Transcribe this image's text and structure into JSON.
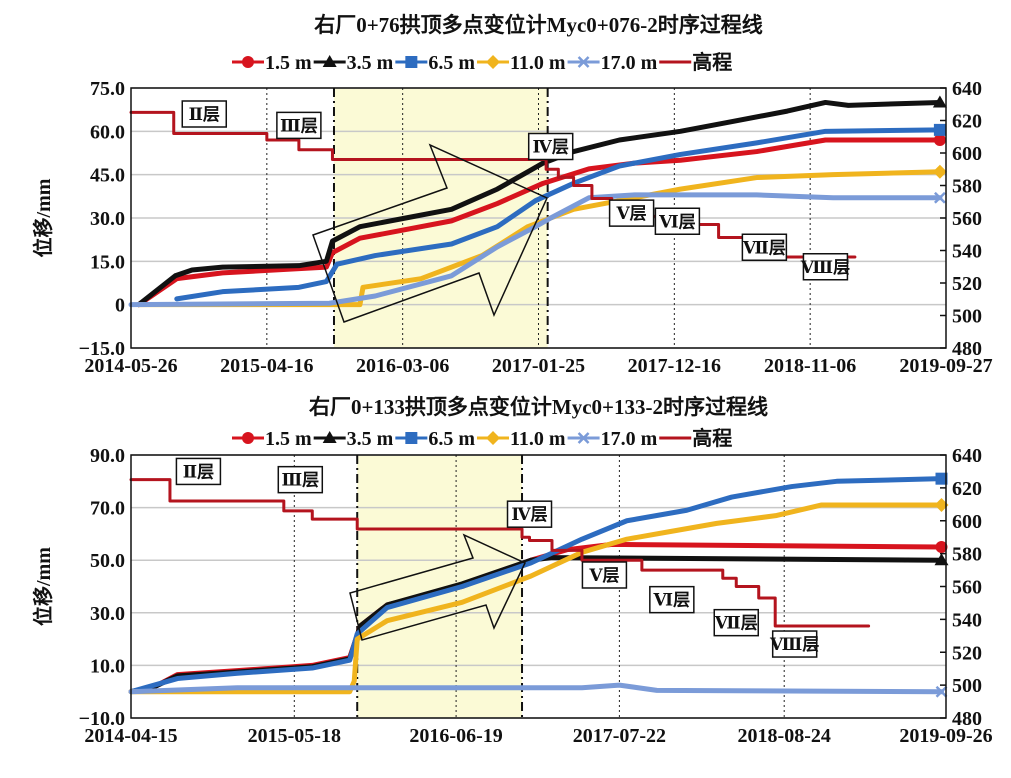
{
  "chart_data": [
    {
      "type": "line",
      "title": "右厂0+76拱顶多点变位计Myc0+076-2时序过程线",
      "ylabel": "位移/mm",
      "ylim": [
        -15,
        75
      ],
      "yticks": [
        "75.0",
        "60.0",
        "45.0",
        "30.0",
        "15.0",
        "0",
        "−15.0"
      ],
      "ytick_values": [
        75,
        60,
        45,
        30,
        15,
        0,
        -15
      ],
      "y2lim": [
        480,
        640
      ],
      "y2ticks": [
        640,
        620,
        600,
        580,
        560,
        540,
        520,
        500,
        480
      ],
      "xlim": [
        2014.4,
        2019.74
      ],
      "xticks": [
        "2014-05-26",
        "2015-04-16",
        "2016-03-06",
        "2017-01-25",
        "2017-12-16",
        "2018-11-06",
        "2019-09-27"
      ],
      "xtick_values": [
        2014.4,
        2015.29,
        2016.18,
        2017.07,
        2017.96,
        2018.85,
        2019.74
      ],
      "highlight_band": [
        2015.73,
        2017.13
      ],
      "grid": true,
      "legend_position": "top-center",
      "series": [
        {
          "name": "1.5 m",
          "color": "#d7141e",
          "marker": "circle",
          "axis": "left",
          "x": [
            2014.45,
            2014.7,
            2015.0,
            2015.68,
            2015.72,
            2015.9,
            2016.2,
            2016.5,
            2016.8,
            2017.1,
            2017.4,
            2017.7,
            2018.0,
            2018.5,
            2018.95,
            2019.7
          ],
          "y": [
            0,
            9,
            11,
            13,
            18,
            23,
            26,
            29,
            35,
            42,
            47,
            49,
            50,
            53,
            57,
            57
          ]
        },
        {
          "name": "3.5 m",
          "color": "#111111",
          "marker": "triangle",
          "axis": "left",
          "x": [
            2014.45,
            2014.69,
            2014.8,
            2015.0,
            2015.5,
            2015.68,
            2015.72,
            2015.9,
            2016.2,
            2016.5,
            2016.8,
            2017.0,
            2017.1,
            2017.3,
            2017.6,
            2018.0,
            2018.3,
            2018.7,
            2018.95,
            2019.1,
            2019.7
          ],
          "y": [
            0,
            10,
            12,
            13,
            13.5,
            15,
            22,
            27,
            30,
            33,
            40,
            46,
            49,
            53,
            57,
            60,
            63,
            67,
            70,
            69,
            70
          ]
        },
        {
          "name": "6.5 m",
          "color": "#2d6cc0",
          "marker": "square",
          "axis": "left",
          "x": [
            2014.7,
            2015.0,
            2015.5,
            2015.68,
            2015.75,
            2016.0,
            2016.5,
            2016.8,
            2017.05,
            2017.3,
            2017.6,
            2018.0,
            2018.5,
            2018.95,
            2019.7
          ],
          "y": [
            2,
            4.5,
            6,
            8,
            14,
            17,
            21,
            27,
            36,
            42,
            48,
            52,
            56,
            60,
            60.5
          ]
        },
        {
          "name": "11.0 m",
          "color": "#f0b41e",
          "marker": "diamond",
          "axis": "left",
          "x": [
            2014.45,
            2015.9,
            2015.92,
            2016.3,
            2016.7,
            2017.0,
            2017.3,
            2017.6,
            2018.0,
            2018.5,
            2019.0,
            2019.7
          ],
          "y": [
            0,
            0,
            6,
            9,
            17,
            27,
            33,
            36,
            40,
            44,
            45,
            46
          ]
        },
        {
          "name": "17.0 m",
          "color": "#7b9bd8",
          "marker": "x",
          "axis": "left",
          "x": [
            2014.4,
            2015.7,
            2016.0,
            2016.5,
            2016.8,
            2017.05,
            2017.15,
            2017.4,
            2017.7,
            2018.5,
            2019.0,
            2019.7
          ],
          "y": [
            0,
            0.5,
            3,
            10,
            20,
            27,
            30,
            37,
            38,
            38,
            37,
            37
          ]
        },
        {
          "name": "高程",
          "color": "#b4141e",
          "marker": "none",
          "axis": "right",
          "step": true,
          "x": [
            2014.4,
            2014.68,
            2015.29,
            2015.5,
            2015.72,
            2017.12,
            2017.2,
            2017.3,
            2017.42,
            2017.55,
            2017.75,
            2018.1,
            2018.25,
            2018.42,
            2018.55,
            2019.13
          ],
          "y": [
            625,
            612,
            608,
            602,
            596,
            590,
            585,
            580,
            572,
            566,
            561,
            556,
            548,
            540,
            536,
            536
          ]
        }
      ],
      "annotations": [
        {
          "text": "Ⅱ层",
          "x": 2014.88,
          "y": 624
        },
        {
          "text": "Ⅲ层",
          "x": 2015.5,
          "y": 617
        },
        {
          "text": "Ⅳ层",
          "x": 2017.15,
          "y": 604
        },
        {
          "text": "Ⅴ层",
          "x": 2017.68,
          "y": 563
        },
        {
          "text": "Ⅵ层",
          "x": 2017.98,
          "y": 558
        },
        {
          "text": "Ⅶ层",
          "x": 2018.55,
          "y": 542
        },
        {
          "text": "Ⅷ层",
          "x": 2018.95,
          "y": 530
        }
      ]
    },
    {
      "type": "line",
      "title": "右厂0+133拱顶多点变位计Myc0+133-2时序过程线",
      "ylabel": "位移/mm",
      "ylim": [
        -10,
        90
      ],
      "yticks": [
        "90.0",
        "70.0",
        "50.0",
        "30.0",
        "10.0",
        "−10.0"
      ],
      "ytick_values": [
        90,
        70,
        50,
        30,
        10,
        -10
      ],
      "y2lim": [
        480,
        640
      ],
      "y2ticks": [
        640,
        620,
        600,
        580,
        560,
        540,
        520,
        500,
        480
      ],
      "xlim": [
        2014.29,
        2019.73
      ],
      "xticks": [
        "2014-04-15",
        "2015-05-18",
        "2016-06-19",
        "2017-07-22",
        "2018-08-24",
        "2019-09-26"
      ],
      "xtick_values": [
        2014.29,
        2015.38,
        2016.46,
        2017.55,
        2018.65,
        2019.73
      ],
      "highlight_band": [
        2015.8,
        2016.9
      ],
      "grid": true,
      "legend_position": "top-center",
      "series": [
        {
          "name": "1.5 m",
          "color": "#d7141e",
          "marker": "circle",
          "axis": "left",
          "x": [
            2014.29,
            2014.45,
            2014.6,
            2015.0,
            2015.5,
            2015.75,
            2015.82,
            2016.0,
            2016.5,
            2016.96,
            2017.2,
            2017.5,
            2019.7
          ],
          "y": [
            0,
            2,
            6.5,
            8,
            10,
            13,
            25,
            33,
            40,
            50,
            54,
            56,
            55
          ]
        },
        {
          "name": "3.5 m",
          "color": "#111111",
          "marker": "triangle",
          "axis": "left",
          "x": [
            2014.29,
            2014.45,
            2014.6,
            2015.0,
            2015.5,
            2015.75,
            2015.82,
            2016.0,
            2016.5,
            2016.96,
            2017.1,
            2019.7
          ],
          "y": [
            0,
            2,
            6,
            7.5,
            9.5,
            12.5,
            25,
            33,
            41,
            50,
            51,
            50
          ]
        },
        {
          "name": "6.5 m",
          "color": "#2d6cc0",
          "marker": "square",
          "axis": "left",
          "x": [
            2014.29,
            2014.6,
            2015.0,
            2015.5,
            2015.75,
            2015.8,
            2016.0,
            2016.5,
            2016.96,
            2017.3,
            2017.6,
            2018.0,
            2018.3,
            2018.7,
            2019.0,
            2019.7
          ],
          "y": [
            0,
            5,
            7,
            9,
            12,
            22,
            32,
            40,
            49,
            58,
            65,
            69,
            74,
            78,
            80,
            81
          ]
        },
        {
          "name": "11.0 m",
          "color": "#f0b41e",
          "marker": "diamond",
          "axis": "left",
          "x": [
            2014.29,
            2015.75,
            2015.78,
            2015.8,
            2016.0,
            2016.5,
            2016.96,
            2017.3,
            2017.6,
            2017.9,
            2018.2,
            2018.6,
            2018.9,
            2019.7
          ],
          "y": [
            0,
            0,
            4,
            20,
            27,
            34,
            44,
            53,
            58,
            61,
            64,
            67,
            71,
            71
          ]
        },
        {
          "name": "17.0 m",
          "color": "#7b9bd8",
          "marker": "x",
          "axis": "left",
          "x": [
            2014.29,
            2015.0,
            2016.0,
            2017.3,
            2017.55,
            2017.8,
            2018.5,
            2019.7
          ],
          "y": [
            0,
            1.5,
            1.5,
            1.5,
            2.5,
            0.5,
            0.3,
            0
          ]
        },
        {
          "name": "高程",
          "color": "#b4141e",
          "marker": "none",
          "axis": "right",
          "step": true,
          "x": [
            2014.29,
            2014.55,
            2015.31,
            2015.5,
            2015.8,
            2016.9,
            2016.95,
            2017.1,
            2017.3,
            2017.55,
            2017.7,
            2018.24,
            2018.33,
            2018.48,
            2018.59,
            2019.2
          ],
          "y": [
            625,
            612,
            606,
            601,
            595,
            590,
            588,
            582,
            576,
            576,
            570,
            565,
            560,
            553,
            536,
            536
          ]
        }
      ],
      "annotations": [
        {
          "text": "Ⅱ层",
          "x": 2014.74,
          "y": 630
        },
        {
          "text": "Ⅲ层",
          "x": 2015.42,
          "y": 625
        },
        {
          "text": "Ⅳ层",
          "x": 2016.95,
          "y": 604
        },
        {
          "text": "Ⅴ层",
          "x": 2017.45,
          "y": 567
        },
        {
          "text": "Ⅵ层",
          "x": 2017.9,
          "y": 552
        },
        {
          "text": "Ⅶ层",
          "x": 2018.33,
          "y": 538
        },
        {
          "text": "Ⅷ层",
          "x": 2018.72,
          "y": 525
        }
      ]
    }
  ]
}
